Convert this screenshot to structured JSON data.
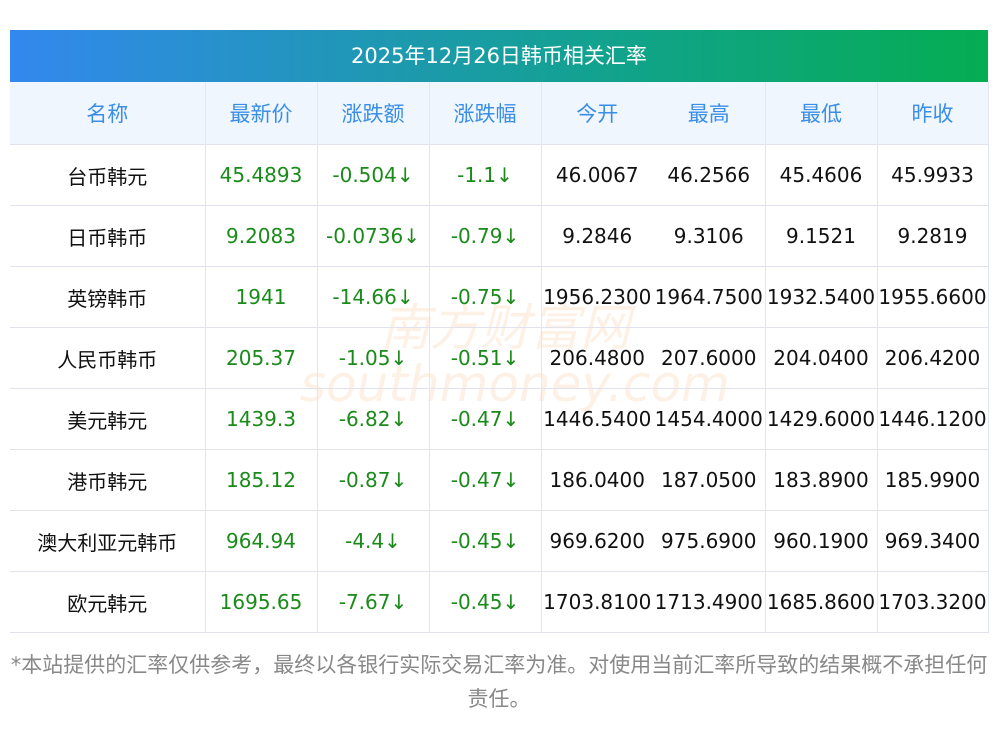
{
  "title": "2025年12月26日韩币相关汇率",
  "headers": [
    "名称",
    "最新价",
    "涨跌额",
    "涨跌幅",
    "今开",
    "最高",
    "最低",
    "昨收"
  ],
  "rows": [
    [
      "台币韩元",
      "45.4893",
      "-0.504↓",
      "-1.1↓",
      "46.0067",
      "46.2566",
      "45.4606",
      "45.9933"
    ],
    [
      "日币韩币",
      "9.2083",
      "-0.0736↓",
      "-0.79↓",
      "9.2846",
      "9.3106",
      "9.1521",
      "9.2819"
    ],
    [
      "英镑韩币",
      "1941",
      "-14.66↓",
      "-0.75↓",
      "1956.2300",
      "1964.7500",
      "1932.5400",
      "1955.6600"
    ],
    [
      "人民币韩币",
      "205.37",
      "-1.05↓",
      "-0.51↓",
      "206.4800",
      "207.6000",
      "204.0400",
      "206.4200"
    ],
    [
      "美元韩元",
      "1439.3",
      "-6.82↓",
      "-0.47↓",
      "1446.5400",
      "1454.4000",
      "1429.6000",
      "1446.1200"
    ],
    [
      "港币韩元",
      "185.12",
      "-0.87↓",
      "-0.47↓",
      "186.0400",
      "187.0500",
      "183.8900",
      "185.9900"
    ],
    [
      "澳大利亚元韩币",
      "964.94",
      "-4.4↓",
      "-0.45↓",
      "969.6200",
      "975.6900",
      "960.1900",
      "969.3400"
    ],
    [
      "欧元韩元",
      "1695.65",
      "-7.67↓",
      "-0.45↓",
      "1703.8100",
      "1713.4900",
      "1685.8600",
      "1703.3200"
    ]
  ],
  "note": "*本站提供的汇率仅供参考，最终以各银行实际交易汇率为准。对使用当前汇率所导致的结果概不承担任何责任。",
  "watermark": {
    "cn": "南方财富网",
    "en": "southmoney.com"
  }
}
